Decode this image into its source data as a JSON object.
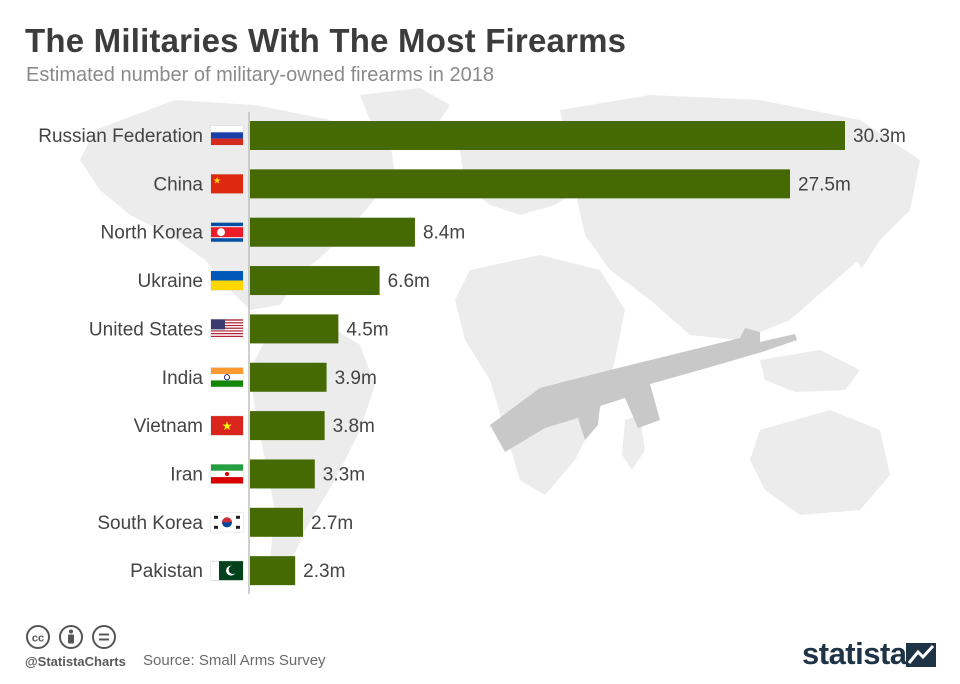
{
  "title": "The Militaries With The Most Firearms",
  "subtitle": "Estimated number of military-owned firearms in 2018",
  "footer": {
    "handle": "@StatistaCharts",
    "source": "Source: Small Arms Survey",
    "brand": "statista"
  },
  "colors": {
    "bar": "#456a04",
    "axis": "#bfbfbf",
    "text": "#444444",
    "map": "#ececec",
    "rifle": "#c8c8c8"
  },
  "icons": [
    "cc-icon",
    "by-icon",
    "nd-icon",
    "statista-logo-icon",
    "rifle-icon",
    "world-map-icon"
  ],
  "chart_data": {
    "type": "bar",
    "orientation": "horizontal",
    "categories": [
      "Russian Federation",
      "China",
      "North Korea",
      "Ukraine",
      "United States",
      "India",
      "Vietnam",
      "Iran",
      "South Korea",
      "Pakistan"
    ],
    "values": [
      30.3,
      27.5,
      8.4,
      6.6,
      4.5,
      3.9,
      3.8,
      3.3,
      2.7,
      2.3
    ],
    "value_labels": [
      "30.3m",
      "27.5m",
      "8.4m",
      "6.6m",
      "4.5m",
      "3.9m",
      "3.8m",
      "3.3m",
      "2.7m",
      "2.3m"
    ],
    "flags": [
      "russia-flag-icon",
      "china-flag-icon",
      "north-korea-flag-icon",
      "ukraine-flag-icon",
      "usa-flag-icon",
      "india-flag-icon",
      "vietnam-flag-icon",
      "iran-flag-icon",
      "south-korea-flag-icon",
      "pakistan-flag-icon"
    ],
    "unit": "m",
    "xlim": [
      0,
      30.3
    ],
    "grid": false,
    "legend": "none"
  }
}
